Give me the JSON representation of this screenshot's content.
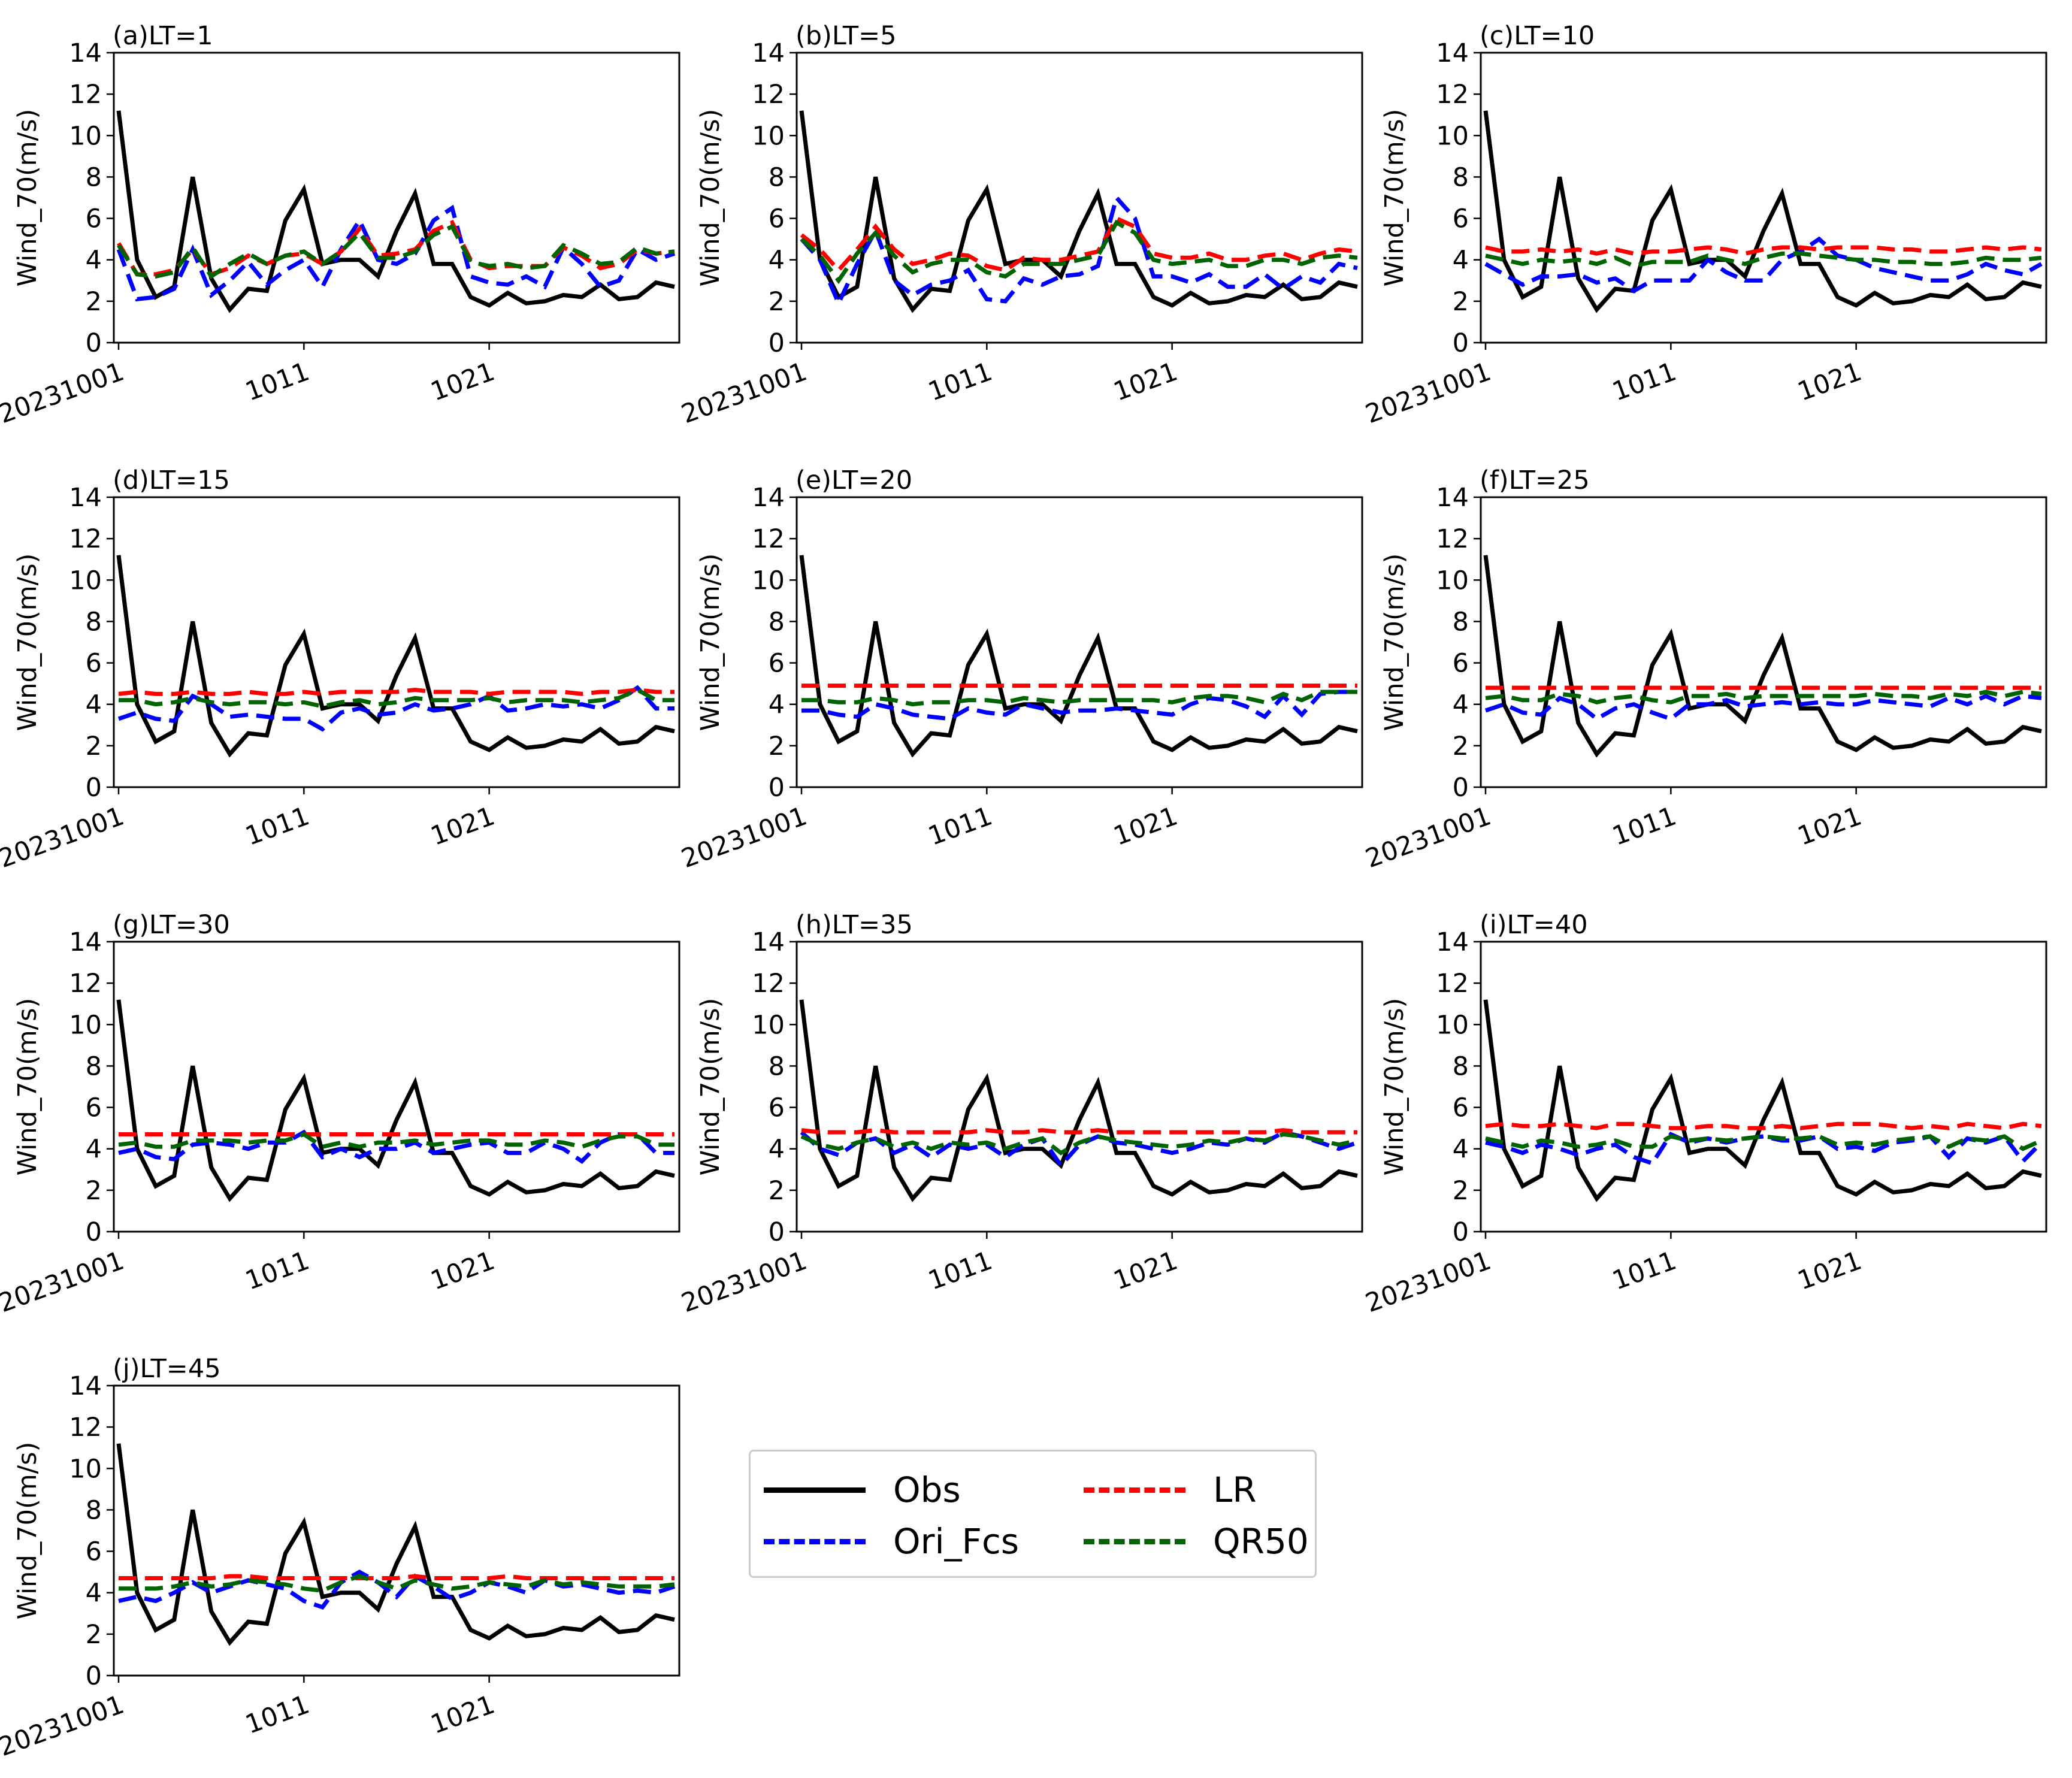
{
  "chart_data": {
    "type": "line",
    "ylabel": "Wind_70(m/s)",
    "ylim": [
      0,
      14
    ],
    "yticks": [
      0,
      2,
      4,
      6,
      8,
      10,
      12,
      14
    ],
    "x_dates": [
      "20231001",
      "1002",
      "1003",
      "1004",
      "1005",
      "1006",
      "1007",
      "1008",
      "1009",
      "1010",
      "1011",
      "1012",
      "1013",
      "1014",
      "1015",
      "1016",
      "1017",
      "1018",
      "1019",
      "1020",
      "1021",
      "1022",
      "1023",
      "1024",
      "1025",
      "1026",
      "1027",
      "1028",
      "1029",
      "1030",
      "1031"
    ],
    "xtick_labels": [
      "20231001",
      "1011",
      "1021"
    ],
    "xtick_index": [
      0,
      10,
      20
    ],
    "legend": [
      {
        "key": "obs",
        "name": "Obs",
        "color": "#000000",
        "dash": "solid"
      },
      {
        "key": "ori",
        "name": "Ori_Fcs",
        "color": "#0000ff",
        "dash": "dashed"
      },
      {
        "key": "lr",
        "name": "LR",
        "color": "#ff0000",
        "dash": "dashed"
      },
      {
        "key": "qr",
        "name": "QR50",
        "color": "#006400",
        "dash": "dashed"
      }
    ],
    "obs": [
      11.2,
      4.0,
      2.2,
      2.7,
      8.0,
      3.1,
      1.6,
      2.6,
      2.5,
      5.9,
      7.4,
      3.8,
      4.0,
      4.0,
      3.2,
      5.4,
      7.2,
      3.8,
      3.8,
      2.2,
      1.8,
      2.4,
      1.9,
      2.0,
      2.3,
      2.2,
      2.8,
      2.1,
      2.2,
      2.9,
      2.7
    ],
    "panels": [
      {
        "title": "(a)LT=1",
        "ori": [
          4.5,
          2.1,
          2.2,
          2.6,
          4.5,
          2.3,
          3.0,
          3.9,
          2.8,
          3.5,
          4.0,
          2.7,
          4.5,
          5.9,
          4.0,
          3.8,
          4.3,
          5.9,
          6.5,
          3.2,
          2.9,
          2.8,
          3.2,
          2.7,
          4.6,
          3.8,
          2.7,
          3.0,
          4.5,
          4.0,
          4.3
        ],
        "lr": [
          4.8,
          3.3,
          3.3,
          3.5,
          4.5,
          3.3,
          3.6,
          4.2,
          3.8,
          4.2,
          4.3,
          3.8,
          4.4,
          5.5,
          4.2,
          4.3,
          4.5,
          5.4,
          5.8,
          4.0,
          3.6,
          3.7,
          3.7,
          3.7,
          4.6,
          4.2,
          3.6,
          3.8,
          4.5,
          4.3,
          4.4
        ],
        "qr": [
          4.7,
          3.3,
          3.2,
          3.4,
          4.6,
          3.2,
          3.8,
          4.3,
          3.8,
          4.2,
          4.4,
          3.8,
          4.4,
          5.3,
          4.1,
          4.1,
          4.4,
          5.2,
          5.6,
          3.9,
          3.7,
          3.8,
          3.6,
          3.7,
          4.7,
          4.3,
          3.8,
          3.9,
          4.6,
          4.3,
          4.4
        ]
      },
      {
        "title": "(b)LT=5",
        "ori": [
          5.0,
          4.0,
          1.9,
          3.8,
          5.4,
          3.0,
          2.3,
          2.8,
          3.0,
          3.5,
          2.1,
          2.0,
          3.1,
          2.8,
          3.2,
          3.3,
          3.7,
          7.0,
          6.0,
          3.2,
          3.2,
          2.9,
          3.3,
          2.7,
          2.7,
          3.3,
          2.6,
          3.2,
          2.9,
          3.8,
          3.6
        ],
        "lr": [
          5.2,
          4.5,
          3.5,
          4.5,
          5.6,
          4.5,
          3.8,
          4.0,
          4.3,
          4.2,
          3.7,
          3.5,
          4.1,
          4.0,
          4.0,
          4.2,
          4.4,
          6.0,
          5.6,
          4.3,
          4.1,
          4.1,
          4.3,
          4.0,
          4.0,
          4.2,
          4.3,
          4.0,
          4.3,
          4.5,
          4.4
        ],
        "qr": [
          5.0,
          4.2,
          3.0,
          4.3,
          5.3,
          4.2,
          3.4,
          3.8,
          4.0,
          4.0,
          3.4,
          3.2,
          3.8,
          3.8,
          3.8,
          4.0,
          4.2,
          5.8,
          5.3,
          4.0,
          3.8,
          3.9,
          4.0,
          3.7,
          3.7,
          4.0,
          4.0,
          3.8,
          4.1,
          4.2,
          4.1
        ]
      },
      {
        "title": "(c)LT=10",
        "ori": [
          3.8,
          3.3,
          2.8,
          3.2,
          3.2,
          3.3,
          2.9,
          3.1,
          2.5,
          3.0,
          3.0,
          3.0,
          4.0,
          3.4,
          3.0,
          3.0,
          4.0,
          4.4,
          5.0,
          4.2,
          4.0,
          3.6,
          3.4,
          3.2,
          3.0,
          3.0,
          3.3,
          3.8,
          3.5,
          3.3,
          3.8
        ],
        "lr": [
          4.6,
          4.4,
          4.4,
          4.5,
          4.4,
          4.5,
          4.3,
          4.5,
          4.3,
          4.4,
          4.4,
          4.5,
          4.6,
          4.5,
          4.3,
          4.5,
          4.6,
          4.6,
          4.5,
          4.6,
          4.6,
          4.6,
          4.5,
          4.5,
          4.4,
          4.4,
          4.5,
          4.6,
          4.5,
          4.6,
          4.5
        ],
        "qr": [
          4.2,
          4.0,
          3.8,
          4.0,
          3.9,
          4.0,
          3.8,
          4.1,
          3.7,
          3.9,
          3.9,
          3.9,
          4.2,
          4.0,
          3.8,
          4.1,
          4.3,
          4.3,
          4.2,
          4.1,
          4.0,
          4.0,
          3.9,
          3.9,
          3.8,
          3.8,
          3.9,
          4.1,
          4.0,
          4.0,
          4.1
        ]
      },
      {
        "title": "(d)LT=15",
        "ori": [
          3.3,
          3.6,
          3.3,
          3.2,
          4.4,
          4.0,
          3.4,
          3.5,
          3.4,
          3.3,
          3.3,
          2.8,
          3.6,
          3.8,
          3.5,
          3.6,
          4.0,
          3.7,
          3.8,
          4.0,
          4.4,
          3.7,
          3.8,
          4.0,
          3.9,
          4.0,
          3.8,
          4.2,
          4.8,
          3.8,
          3.8
        ],
        "lr": [
          4.5,
          4.6,
          4.5,
          4.5,
          4.6,
          4.5,
          4.5,
          4.6,
          4.5,
          4.5,
          4.6,
          4.5,
          4.6,
          4.6,
          4.6,
          4.6,
          4.7,
          4.6,
          4.6,
          4.6,
          4.5,
          4.6,
          4.6,
          4.6,
          4.6,
          4.5,
          4.6,
          4.6,
          4.7,
          4.6,
          4.6
        ],
        "qr": [
          4.2,
          4.2,
          4.0,
          4.1,
          4.3,
          4.1,
          4.0,
          4.1,
          4.1,
          4.0,
          4.1,
          3.9,
          4.1,
          4.2,
          4.0,
          4.1,
          4.3,
          4.2,
          4.2,
          4.2,
          4.3,
          4.1,
          4.2,
          4.2,
          4.2,
          4.1,
          4.2,
          4.3,
          4.7,
          4.2,
          4.2
        ]
      },
      {
        "title": "(e)LT=20",
        "ori": [
          3.7,
          3.7,
          3.5,
          3.4,
          4.0,
          3.8,
          3.5,
          3.4,
          3.3,
          3.8,
          3.6,
          3.5,
          4.0,
          3.8,
          3.6,
          3.7,
          3.7,
          3.8,
          3.7,
          3.6,
          3.5,
          4.0,
          4.3,
          4.2,
          3.9,
          3.4,
          4.4,
          3.5,
          4.5,
          4.6,
          4.6
        ],
        "lr": [
          4.9,
          4.9,
          4.9,
          4.9,
          4.9,
          4.9,
          4.9,
          4.9,
          4.9,
          4.9,
          4.9,
          4.9,
          4.9,
          4.9,
          4.9,
          4.9,
          4.9,
          4.9,
          4.9,
          4.9,
          4.9,
          4.9,
          4.9,
          4.9,
          4.9,
          4.9,
          4.9,
          4.9,
          4.9,
          4.9,
          4.9
        ],
        "qr": [
          4.2,
          4.2,
          4.1,
          4.1,
          4.3,
          4.2,
          4.0,
          4.1,
          4.1,
          4.2,
          4.2,
          4.1,
          4.3,
          4.2,
          4.1,
          4.2,
          4.2,
          4.2,
          4.2,
          4.2,
          4.1,
          4.3,
          4.4,
          4.4,
          4.3,
          4.1,
          4.5,
          4.2,
          4.6,
          4.6,
          4.6
        ]
      },
      {
        "title": "(f)LT=25",
        "ori": [
          3.7,
          4.0,
          3.6,
          3.5,
          4.3,
          4.0,
          3.3,
          3.8,
          4.0,
          3.6,
          3.3,
          4.0,
          4.0,
          4.2,
          3.9,
          4.0,
          4.1,
          4.0,
          4.1,
          4.0,
          4.0,
          4.2,
          4.1,
          4.0,
          3.9,
          4.3,
          4.0,
          4.4,
          4.0,
          4.4,
          4.3
        ],
        "lr": [
          4.8,
          4.8,
          4.8,
          4.8,
          4.8,
          4.8,
          4.8,
          4.8,
          4.8,
          4.8,
          4.8,
          4.8,
          4.8,
          4.8,
          4.8,
          4.8,
          4.8,
          4.8,
          4.8,
          4.8,
          4.8,
          4.8,
          4.8,
          4.8,
          4.8,
          4.8,
          4.8,
          4.8,
          4.8,
          4.8,
          4.8
        ],
        "qr": [
          4.3,
          4.4,
          4.2,
          4.2,
          4.5,
          4.4,
          4.1,
          4.3,
          4.4,
          4.2,
          4.1,
          4.4,
          4.4,
          4.5,
          4.3,
          4.4,
          4.4,
          4.4,
          4.4,
          4.4,
          4.4,
          4.5,
          4.4,
          4.4,
          4.3,
          4.5,
          4.4,
          4.6,
          4.4,
          4.6,
          4.5
        ]
      },
      {
        "title": "(g)LT=30",
        "ori": [
          3.8,
          4.0,
          3.6,
          3.5,
          4.2,
          4.3,
          4.2,
          4.0,
          4.3,
          4.3,
          4.8,
          3.6,
          4.0,
          3.6,
          4.0,
          4.0,
          4.3,
          3.8,
          4.0,
          4.2,
          4.3,
          3.8,
          3.8,
          4.3,
          4.0,
          3.4,
          4.3,
          4.7,
          4.7,
          3.8,
          3.8
        ],
        "lr": [
          4.7,
          4.7,
          4.7,
          4.7,
          4.7,
          4.7,
          4.7,
          4.7,
          4.7,
          4.7,
          4.7,
          4.7,
          4.7,
          4.7,
          4.7,
          4.7,
          4.7,
          4.7,
          4.7,
          4.7,
          4.7,
          4.7,
          4.7,
          4.7,
          4.7,
          4.7,
          4.7,
          4.7,
          4.7,
          4.7,
          4.7
        ],
        "qr": [
          4.2,
          4.3,
          4.1,
          4.1,
          4.4,
          4.4,
          4.4,
          4.3,
          4.4,
          4.4,
          4.7,
          4.1,
          4.3,
          4.1,
          4.3,
          4.3,
          4.4,
          4.2,
          4.3,
          4.4,
          4.4,
          4.2,
          4.2,
          4.4,
          4.3,
          4.1,
          4.4,
          4.6,
          4.6,
          4.2,
          4.2
        ]
      },
      {
        "title": "(h)LT=35",
        "ori": [
          4.8,
          4.0,
          3.7,
          4.3,
          4.5,
          3.8,
          4.2,
          3.6,
          4.2,
          4.0,
          4.2,
          3.6,
          4.2,
          4.5,
          3.2,
          4.2,
          4.6,
          4.3,
          4.2,
          4.0,
          3.8,
          4.0,
          4.3,
          4.2,
          4.5,
          4.3,
          4.8,
          4.6,
          4.3,
          4.0,
          4.3
        ],
        "lr": [
          4.9,
          4.8,
          4.8,
          4.8,
          4.9,
          4.8,
          4.8,
          4.8,
          4.8,
          4.8,
          4.9,
          4.8,
          4.8,
          4.9,
          4.8,
          4.8,
          4.9,
          4.8,
          4.8,
          4.8,
          4.8,
          4.8,
          4.8,
          4.8,
          4.8,
          4.8,
          4.9,
          4.8,
          4.8,
          4.8,
          4.8
        ],
        "qr": [
          4.6,
          4.2,
          4.0,
          4.3,
          4.5,
          4.1,
          4.3,
          4.0,
          4.3,
          4.2,
          4.3,
          4.0,
          4.3,
          4.5,
          3.8,
          4.3,
          4.6,
          4.4,
          4.3,
          4.2,
          4.1,
          4.2,
          4.4,
          4.3,
          4.5,
          4.4,
          4.7,
          4.6,
          4.4,
          4.2,
          4.4
        ]
      },
      {
        "title": "(i)LT=40",
        "ori": [
          4.3,
          4.1,
          3.8,
          4.2,
          4.0,
          3.7,
          4.0,
          4.2,
          3.6,
          3.3,
          4.7,
          4.3,
          4.5,
          4.3,
          4.5,
          4.6,
          4.4,
          4.4,
          4.6,
          4.0,
          4.1,
          3.9,
          4.3,
          4.4,
          4.6,
          3.6,
          4.5,
          4.3,
          4.6,
          3.4,
          4.3
        ],
        "lr": [
          5.1,
          5.2,
          5.1,
          5.1,
          5.2,
          5.1,
          5.0,
          5.2,
          5.2,
          5.1,
          5.0,
          5.0,
          5.1,
          5.1,
          5.0,
          5.0,
          5.1,
          5.0,
          5.1,
          5.2,
          5.2,
          5.2,
          5.1,
          5.0,
          5.1,
          5.0,
          5.2,
          5.1,
          5.0,
          5.2,
          5.1
        ],
        "qr": [
          4.5,
          4.3,
          4.1,
          4.4,
          4.3,
          4.1,
          4.2,
          4.4,
          4.1,
          4.1,
          4.6,
          4.4,
          4.5,
          4.4,
          4.5,
          4.6,
          4.5,
          4.5,
          4.6,
          4.2,
          4.3,
          4.2,
          4.4,
          4.5,
          4.6,
          4.1,
          4.5,
          4.4,
          4.6,
          4.0,
          4.4
        ]
      },
      {
        "title": "(j)LT=45",
        "ori": [
          3.6,
          3.8,
          3.6,
          4.0,
          4.5,
          4.0,
          4.3,
          4.6,
          4.4,
          4.2,
          3.6,
          3.3,
          4.5,
          5.0,
          4.5,
          3.8,
          4.8,
          4.3,
          3.7,
          4.0,
          4.5,
          4.3,
          4.0,
          4.6,
          4.3,
          4.4,
          4.2,
          4.0,
          4.1,
          4.0,
          4.3
        ],
        "lr": [
          4.7,
          4.7,
          4.7,
          4.7,
          4.7,
          4.7,
          4.8,
          4.8,
          4.7,
          4.7,
          4.7,
          4.7,
          4.7,
          4.7,
          4.7,
          4.7,
          4.8,
          4.7,
          4.7,
          4.7,
          4.7,
          4.8,
          4.7,
          4.7,
          4.7,
          4.7,
          4.7,
          4.7,
          4.7,
          4.7,
          4.7
        ],
        "qr": [
          4.2,
          4.2,
          4.2,
          4.3,
          4.5,
          4.3,
          4.4,
          4.6,
          4.5,
          4.4,
          4.2,
          4.1,
          4.5,
          4.8,
          4.5,
          4.2,
          4.6,
          4.4,
          4.2,
          4.3,
          4.5,
          4.4,
          4.3,
          4.6,
          4.4,
          4.5,
          4.4,
          4.3,
          4.3,
          4.3,
          4.4
        ]
      }
    ]
  }
}
